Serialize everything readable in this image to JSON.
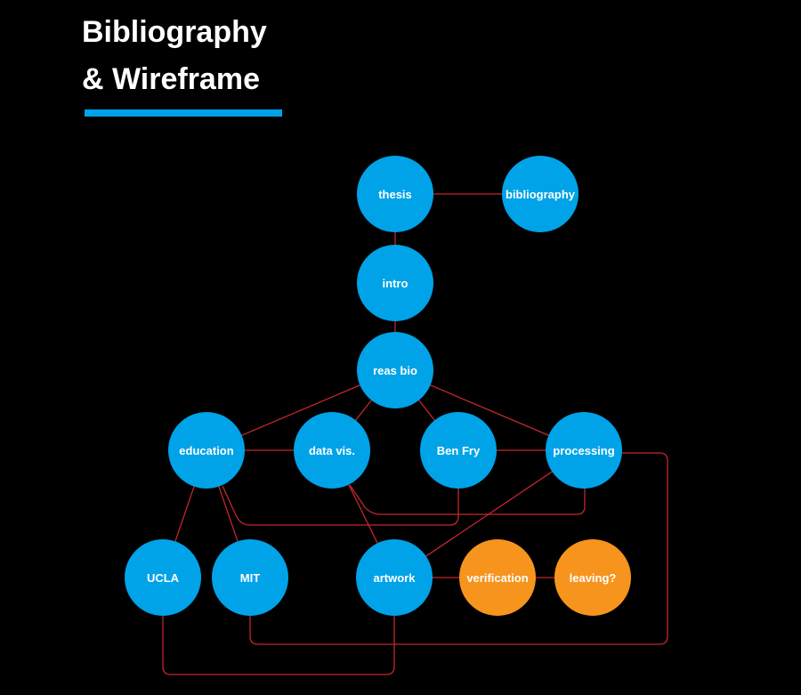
{
  "title": {
    "line1": "Bibliography",
    "line2": "& Wireframe"
  },
  "colors": {
    "background": "#000000",
    "primary_node": "#00a3e8",
    "secondary_node": "#f7941d",
    "edge": "#c1272d",
    "accent_bar": "#00a3e8",
    "text": "#ffffff"
  },
  "nodes": {
    "thesis": {
      "label": "thesis",
      "kind": "primary"
    },
    "bibliography": {
      "label": "bibliography",
      "kind": "primary"
    },
    "intro": {
      "label": "intro",
      "kind": "primary"
    },
    "reas_bio": {
      "label": "reas bio",
      "kind": "primary"
    },
    "education": {
      "label": "education",
      "kind": "primary"
    },
    "data_vis": {
      "label": "data vis.",
      "kind": "primary"
    },
    "ben_fry": {
      "label": "Ben Fry",
      "kind": "primary"
    },
    "processing": {
      "label": "processing",
      "kind": "primary"
    },
    "ucla": {
      "label": "UCLA",
      "kind": "primary"
    },
    "mit": {
      "label": "MIT",
      "kind": "primary"
    },
    "artwork": {
      "label": "artwork",
      "kind": "primary"
    },
    "verification": {
      "label": "verification",
      "kind": "secondary"
    },
    "leaving": {
      "label": "leaving?",
      "kind": "secondary"
    }
  },
  "edges": [
    [
      "thesis",
      "bibliography"
    ],
    [
      "thesis",
      "intro"
    ],
    [
      "intro",
      "reas_bio"
    ],
    [
      "reas_bio",
      "education"
    ],
    [
      "reas_bio",
      "data_vis"
    ],
    [
      "reas_bio",
      "ben_fry"
    ],
    [
      "reas_bio",
      "processing"
    ],
    [
      "education",
      "data_vis"
    ],
    [
      "ben_fry",
      "processing"
    ],
    [
      "education",
      "ucla"
    ],
    [
      "education",
      "mit"
    ],
    [
      "data_vis",
      "artwork"
    ],
    [
      "processing",
      "artwork"
    ],
    [
      "artwork",
      "verification"
    ],
    [
      "verification",
      "leaving"
    ],
    [
      "education",
      "ben_fry"
    ],
    [
      "data_vis",
      "processing"
    ],
    [
      "ucla",
      "artwork"
    ],
    [
      "mit",
      "processing"
    ]
  ]
}
